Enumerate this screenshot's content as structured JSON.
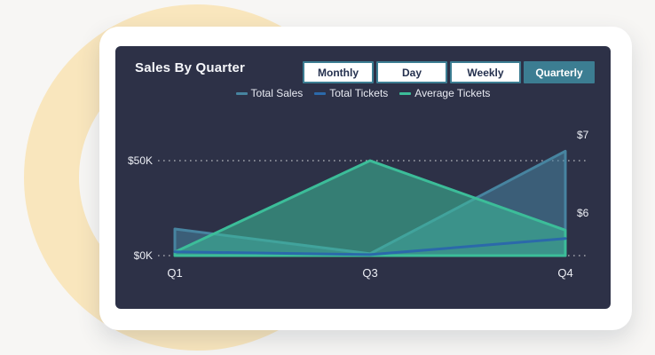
{
  "window": {
    "background": "#F7F6F4"
  },
  "decor": {
    "ring_color": "#F9E6BD"
  },
  "card": {
    "background": "#FFFFFF"
  },
  "panel": {
    "background": "#2D3147",
    "accent": "#3C7D92",
    "title": "Sales By Quarter",
    "tabs": [
      {
        "label": "Monthly",
        "active": false
      },
      {
        "label": "Day",
        "active": false
      },
      {
        "label": "Weekly",
        "active": false
      },
      {
        "label": "Quarterly",
        "active": true
      }
    ]
  },
  "chart_data": {
    "type": "area",
    "title": "Sales By Quarter",
    "categories": [
      "Q1",
      "Q3",
      "Q4"
    ],
    "series": [
      {
        "name": "Total Sales",
        "axis": "left",
        "color": "#4784A0",
        "fill": true,
        "values": [
          14000,
          1000,
          55000
        ]
      },
      {
        "name": "Total Tickets",
        "axis": "left",
        "color": "#2B69AA",
        "fill": false,
        "values": [
          2000,
          500,
          9000
        ]
      },
      {
        "name": "Average Tickets",
        "axis": "right",
        "color": "#3CBD99",
        "fill": true,
        "values": [
          5.5,
          6.67,
          5.78
        ]
      }
    ],
    "left_axis": {
      "tick_labels": [
        "$50K",
        "$0K"
      ],
      "tick_values": [
        50000,
        0
      ],
      "min": 0,
      "max": 57000
    },
    "right_axis": {
      "tick_labels": [
        "$7",
        "$6"
      ],
      "tick_values": [
        7,
        6
      ],
      "min": 5.4,
      "max": 7.1
    },
    "grid": "dotted-horizontal",
    "grid_color": "rgba(255,255,255,0.55)",
    "legend_position": "top-center"
  }
}
